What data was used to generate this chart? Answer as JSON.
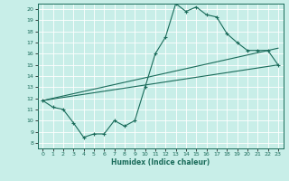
{
  "xlabel": "Humidex (Indice chaleur)",
  "bg_color": "#c8eee8",
  "line_color": "#1a6b5a",
  "grid_color": "#ffffff",
  "xlim": [
    -0.5,
    23.5
  ],
  "ylim": [
    7.5,
    20.5
  ],
  "yticks": [
    8,
    9,
    10,
    11,
    12,
    13,
    14,
    15,
    16,
    17,
    18,
    19,
    20
  ],
  "xticks": [
    0,
    1,
    2,
    3,
    4,
    5,
    6,
    7,
    8,
    9,
    10,
    11,
    12,
    13,
    14,
    15,
    16,
    17,
    18,
    19,
    20,
    21,
    22,
    23
  ],
  "line1_x": [
    0,
    1,
    2,
    3,
    4,
    5,
    6,
    7,
    8,
    9,
    10,
    11,
    12,
    13,
    14,
    15,
    16,
    17,
    18,
    19,
    20,
    21,
    22,
    23
  ],
  "line1_y": [
    11.8,
    11.2,
    11.0,
    9.8,
    8.5,
    8.8,
    8.8,
    10.0,
    9.5,
    10.0,
    13.0,
    16.0,
    17.5,
    20.5,
    19.8,
    20.2,
    19.5,
    19.3,
    17.8,
    17.0,
    16.3,
    16.3,
    16.3,
    15.0
  ],
  "line2_x": [
    0,
    23
  ],
  "line2_y": [
    11.8,
    15.0
  ],
  "line3_x": [
    0,
    23
  ],
  "line3_y": [
    11.8,
    16.5
  ]
}
